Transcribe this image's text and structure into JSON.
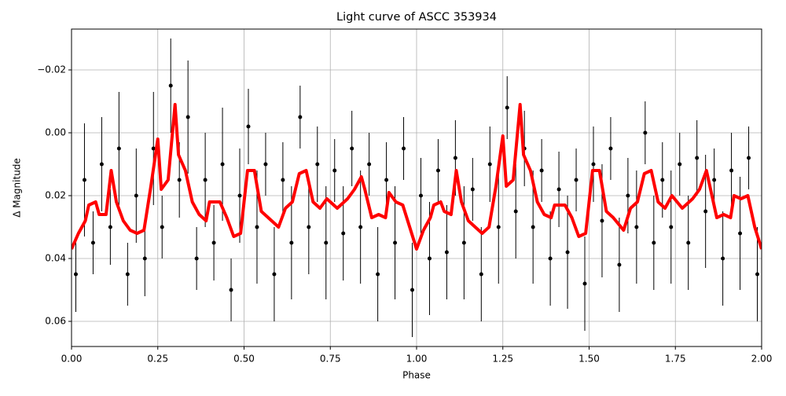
{
  "chart_data": {
    "type": "scatter",
    "title": "Light curve of ASCC 353934",
    "xlabel": "Phase",
    "ylabel": "Δ Magnitude",
    "xlim": [
      0,
      2
    ],
    "ylim": [
      -0.033,
      0.068
    ],
    "invert_y": true,
    "grid": true,
    "xticks": [
      {
        "value": 0,
        "label": "0.00"
      },
      0.25,
      {
        "value": 0.5,
        "label": "0.50"
      },
      0.75,
      {
        "value": 1,
        "label": "1.00"
      },
      1.25,
      {
        "value": 1.5,
        "label": "1.50"
      },
      1.75,
      {
        "value": 2,
        "label": "2.00"
      }
    ],
    "yticks": [
      {
        "value": -0.02,
        "label": "−0.02"
      },
      {
        "value": 0,
        "label": "0.00"
      },
      0.02,
      0.04,
      0.06
    ],
    "points": {
      "color": "#000000",
      "x": [
        0.0125,
        0.0375,
        0.0625,
        0.0875,
        0.1125,
        0.1375,
        0.1625,
        0.1875,
        0.2125,
        0.2375,
        0.2625,
        0.2875,
        0.3125,
        0.3375,
        0.3625,
        0.3875,
        0.4125,
        0.4375,
        0.4625,
        0.4875,
        0.5125,
        0.5375,
        0.5625,
        0.5875,
        0.6125,
        0.6375,
        0.6625,
        0.6875,
        0.7125,
        0.7375,
        0.7625,
        0.7875,
        0.8125,
        0.8375,
        0.8625,
        0.8875,
        0.9125,
        0.9375,
        0.9625,
        0.9875,
        1.0125,
        1.0375,
        1.0625,
        1.0875,
        1.1125,
        1.1375,
        1.1625,
        1.1875,
        1.2125,
        1.2375,
        1.2625,
        1.2875,
        1.3125,
        1.3375,
        1.3625,
        1.3875,
        1.4125,
        1.4375,
        1.4625,
        1.4875,
        1.5125,
        1.5375,
        1.5625,
        1.5875,
        1.6125,
        1.6375,
        1.6625,
        1.6875,
        1.7125,
        1.7375,
        1.7625,
        1.7875,
        1.8125,
        1.8375,
        1.8625,
        1.8875,
        1.9125,
        1.9375,
        1.9625,
        1.9875
      ],
      "values": [
        0.045,
        0.015,
        0.035,
        0.01,
        0.03,
        0.005,
        0.045,
        0.02,
        0.04,
        0.005,
        0.03,
        -0.015,
        0.015,
        -0.005,
        0.04,
        0.015,
        0.035,
        0.01,
        0.05,
        0.02,
        -0.002,
        0.03,
        0.01,
        0.045,
        0.015,
        0.035,
        -0.005,
        0.03,
        0.01,
        0.035,
        0.012,
        0.032,
        0.005,
        0.03,
        0.01,
        0.045,
        0.015,
        0.035,
        0.005,
        0.05,
        0.02,
        0.04,
        0.012,
        0.038,
        0.008,
        0.035,
        0.018,
        0.045,
        0.01,
        0.03,
        -0.008,
        0.025,
        0.005,
        0.03,
        0.012,
        0.04,
        0.018,
        0.038,
        0.015,
        0.048,
        0.01,
        0.028,
        0.005,
        0.042,
        0.02,
        0.03,
        0.0,
        0.035,
        0.015,
        0.03,
        0.01,
        0.035,
        0.008,
        0.025,
        0.015,
        0.04,
        0.012,
        0.032,
        0.008,
        0.045
      ],
      "errors": [
        0.012,
        0.018,
        0.01,
        0.015,
        0.012,
        0.018,
        0.01,
        0.015,
        0.012,
        0.018,
        0.01,
        0.015,
        0.012,
        0.018,
        0.01,
        0.015,
        0.012,
        0.018,
        0.01,
        0.015,
        0.012,
        0.018,
        0.01,
        0.015,
        0.012,
        0.018,
        0.01,
        0.015,
        0.012,
        0.018,
        0.01,
        0.015,
        0.012,
        0.018,
        0.01,
        0.015,
        0.012,
        0.018,
        0.01,
        0.015,
        0.012,
        0.018,
        0.01,
        0.015,
        0.012,
        0.018,
        0.01,
        0.015,
        0.012,
        0.018,
        0.01,
        0.015,
        0.012,
        0.018,
        0.01,
        0.015,
        0.012,
        0.018,
        0.01,
        0.015,
        0.012,
        0.018,
        0.01,
        0.015,
        0.012,
        0.018,
        0.01,
        0.015,
        0.012,
        0.018,
        0.01,
        0.015,
        0.012,
        0.018,
        0.01,
        0.015,
        0.012,
        0.018,
        0.01,
        0.015
      ]
    },
    "fit": {
      "color": "#ff0000",
      "x": [
        0,
        0.02,
        0.04,
        0.05,
        0.07,
        0.08,
        0.1,
        0.115,
        0.13,
        0.15,
        0.17,
        0.19,
        0.21,
        0.23,
        0.25,
        0.26,
        0.28,
        0.3,
        0.31,
        0.33,
        0.35,
        0.37,
        0.39,
        0.4,
        0.43,
        0.45,
        0.47,
        0.49,
        0.51,
        0.53,
        0.55,
        0.57,
        0.6,
        0.62,
        0.64,
        0.66,
        0.68,
        0.7,
        0.72,
        0.74,
        0.77,
        0.8,
        0.82,
        0.84,
        0.85,
        0.87,
        0.89,
        0.91,
        0.92,
        0.94,
        0.96,
        0.98,
        1.0,
        1.02,
        1.04,
        1.05,
        1.07,
        1.08,
        1.1,
        1.115,
        1.13,
        1.15,
        1.17,
        1.19,
        1.21,
        1.23,
        1.25,
        1.26,
        1.28,
        1.3,
        1.31,
        1.33,
        1.35,
        1.37,
        1.39,
        1.4,
        1.43,
        1.45,
        1.47,
        1.49,
        1.51,
        1.53,
        1.55,
        1.57,
        1.6,
        1.62,
        1.64,
        1.66,
        1.68,
        1.7,
        1.72,
        1.74,
        1.77,
        1.8,
        1.82,
        1.84,
        1.85,
        1.87,
        1.89,
        1.91,
        1.92,
        1.94,
        1.96,
        1.98,
        2.0
      ],
      "values": [
        0.037,
        0.032,
        0.028,
        0.023,
        0.022,
        0.026,
        0.026,
        0.012,
        0.022,
        0.028,
        0.031,
        0.032,
        0.031,
        0.017,
        0.002,
        0.018,
        0.015,
        -0.009,
        0.007,
        0.012,
        0.022,
        0.026,
        0.028,
        0.022,
        0.022,
        0.027,
        0.033,
        0.032,
        0.012,
        0.012,
        0.025,
        0.027,
        0.03,
        0.024,
        0.022,
        0.013,
        0.012,
        0.022,
        0.024,
        0.021,
        0.024,
        0.021,
        0.018,
        0.014,
        0.018,
        0.027,
        0.026,
        0.027,
        0.019,
        0.022,
        0.023,
        0.03,
        0.037,
        0.031,
        0.027,
        0.023,
        0.022,
        0.025,
        0.026,
        0.012,
        0.022,
        0.028,
        0.03,
        0.032,
        0.03,
        0.017,
        0.001,
        0.017,
        0.015,
        -0.009,
        0.007,
        0.012,
        0.022,
        0.026,
        0.027,
        0.023,
        0.023,
        0.027,
        0.033,
        0.032,
        0.012,
        0.012,
        0.025,
        0.027,
        0.031,
        0.024,
        0.022,
        0.013,
        0.012,
        0.022,
        0.024,
        0.02,
        0.024,
        0.021,
        0.018,
        0.012,
        0.017,
        0.027,
        0.026,
        0.027,
        0.02,
        0.021,
        0.02,
        0.03,
        0.037
      ]
    }
  }
}
